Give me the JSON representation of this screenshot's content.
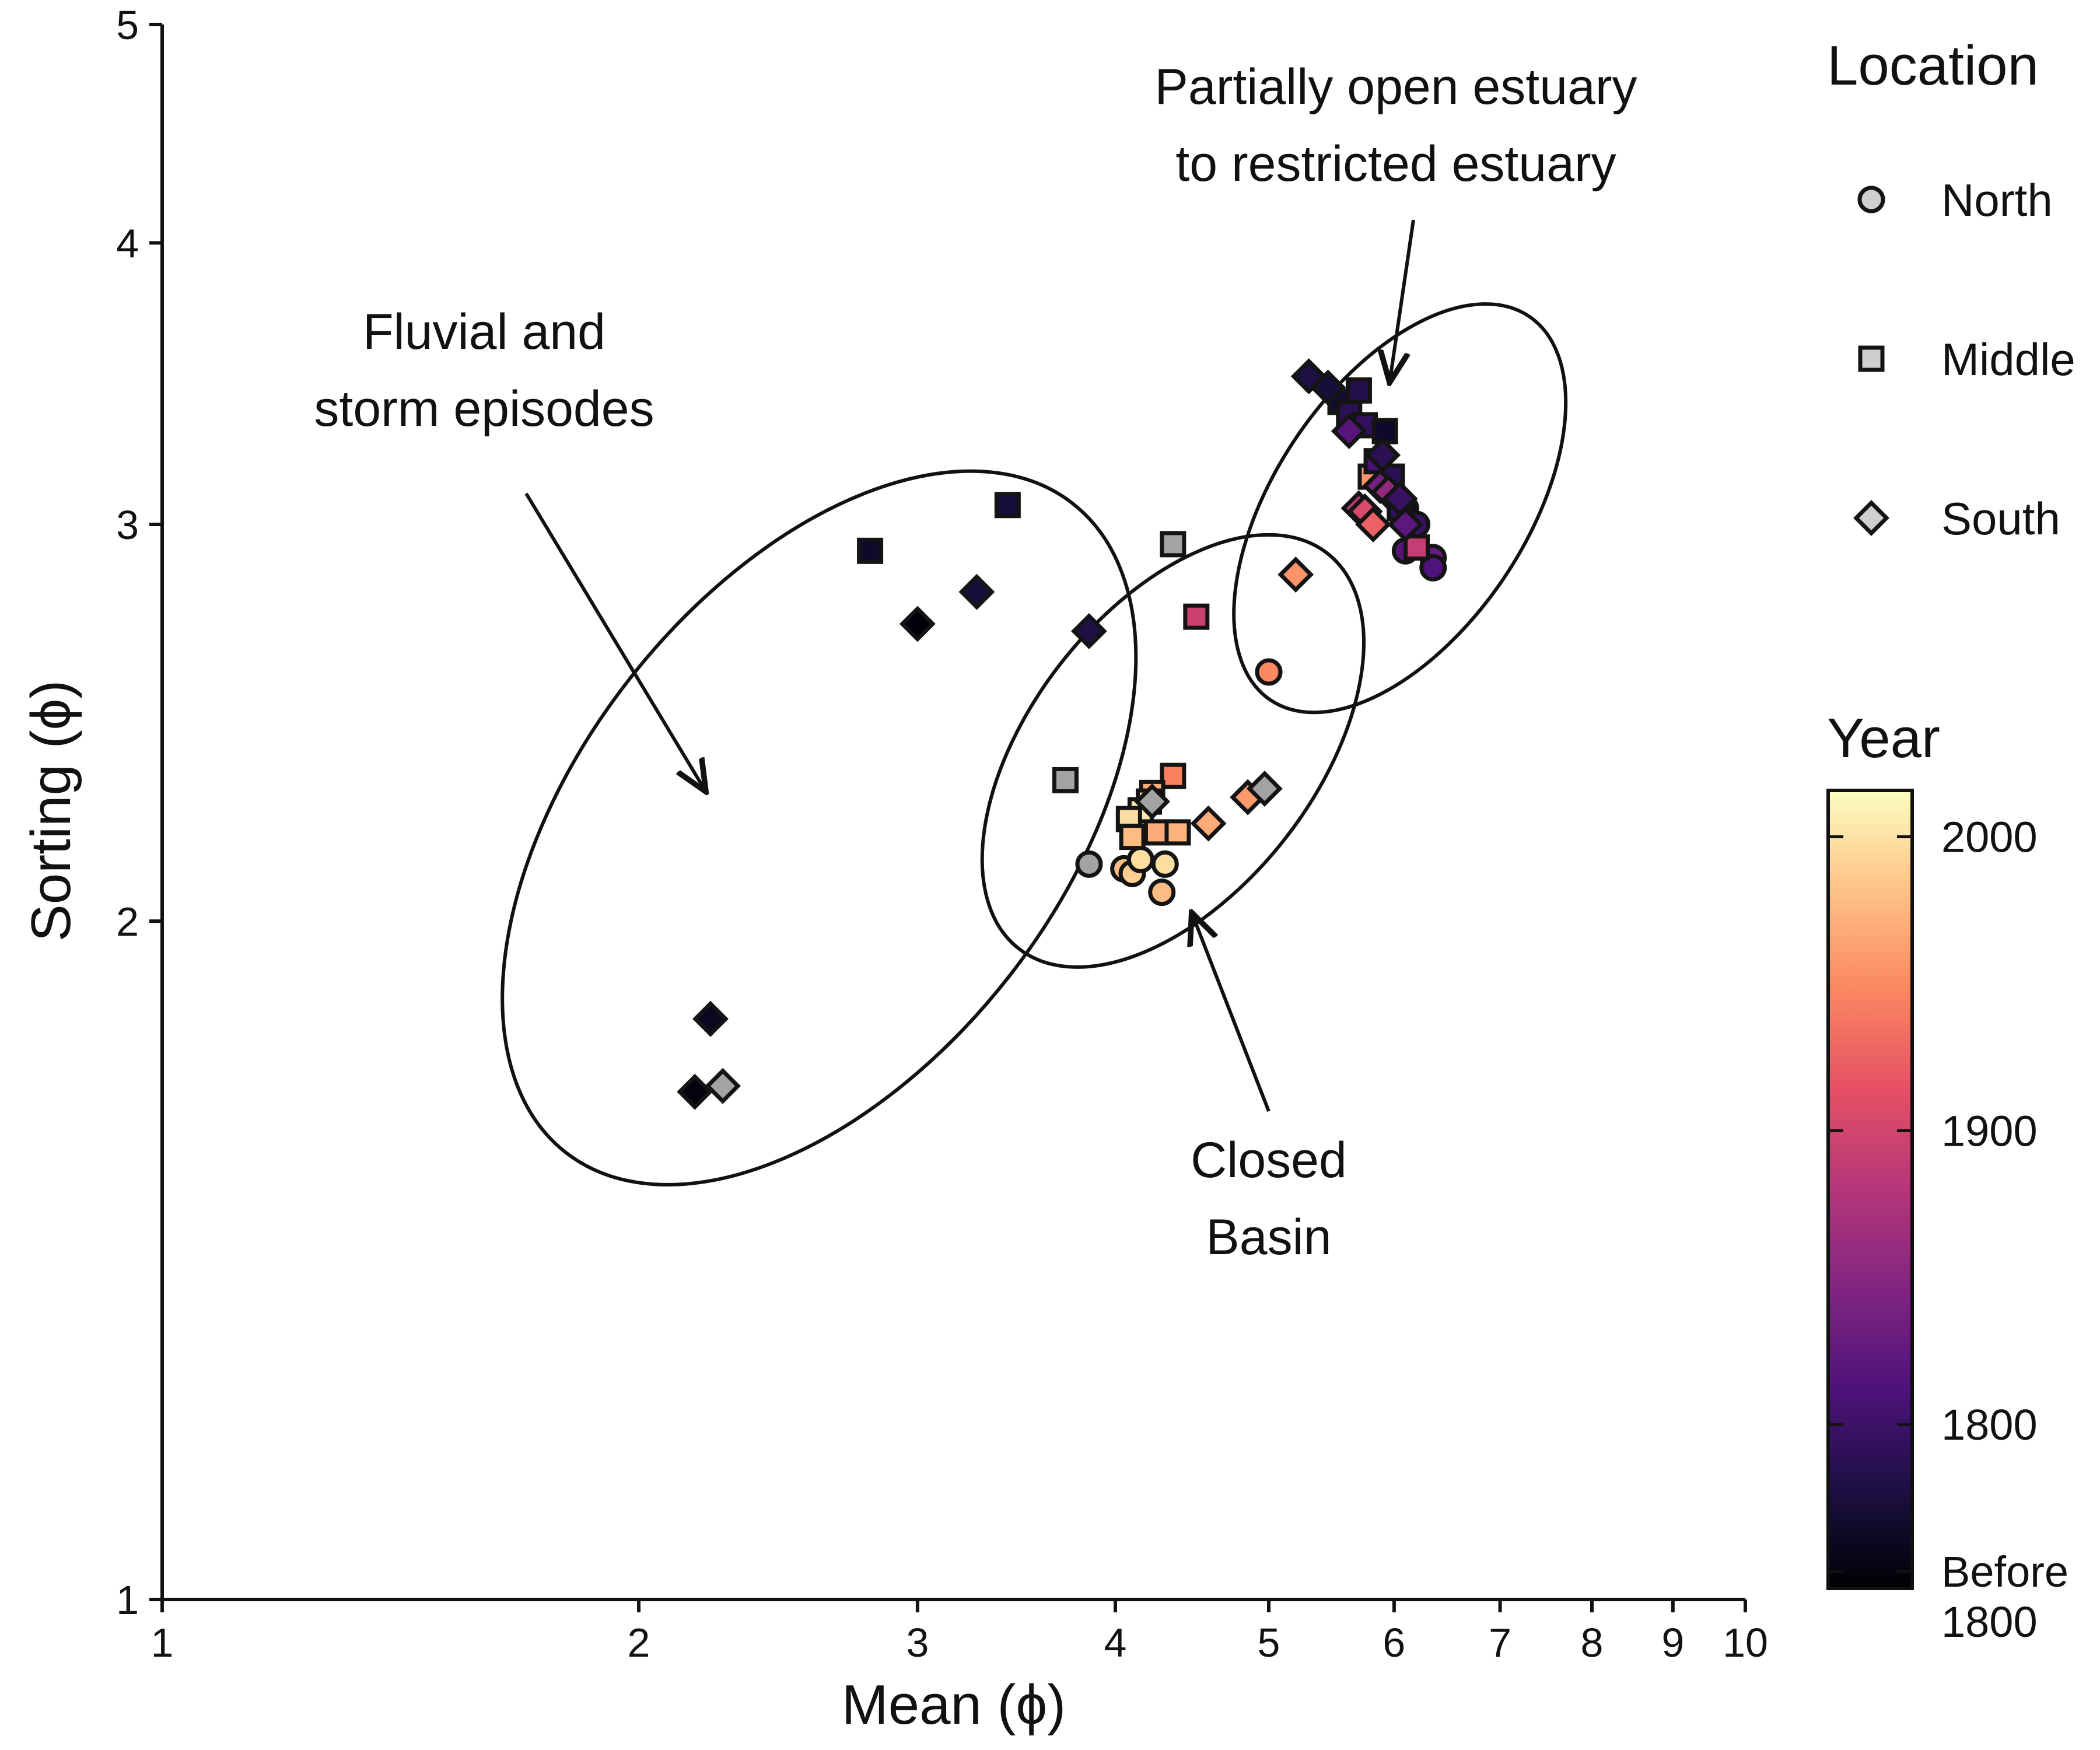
{
  "chart_data": {
    "type": "scatter",
    "xlabel": "Mean (ϕ)",
    "ylabel": "Sorting (ϕ)",
    "xscale": "log",
    "yscale": "log",
    "xlim": [
      1,
      10
    ],
    "ylim": [
      1,
      5
    ],
    "xticks": [
      "1",
      "2",
      "3",
      "4",
      "5",
      "6",
      "7",
      "8",
      "9",
      "10"
    ],
    "yticks": [
      "1",
      "2",
      "3",
      "4",
      "5"
    ],
    "grid": false,
    "legend": {
      "title": "Location",
      "placement": "right",
      "entries": [
        {
          "label": "North",
          "shape": "circle"
        },
        {
          "label": "Middle",
          "shape": "square"
        },
        {
          "label": "South",
          "shape": "diamond"
        }
      ]
    },
    "colorbar": {
      "title": "Year",
      "placement": "right",
      "range": [
        1745,
        2015
      ],
      "ticks": [
        {
          "value": 2000,
          "label": "2000"
        },
        {
          "value": 1900,
          "label": "1900"
        },
        {
          "value": 1800,
          "label": "1800"
        },
        {
          "value": 1750,
          "label": "Before\n1800"
        }
      ],
      "stops": [
        "#000004",
        "#1c1044",
        "#4f127b",
        "#812581",
        "#b5367a",
        "#e55064",
        "#fb8761",
        "#fec287",
        "#fcfdbf"
      ]
    },
    "annotations": [
      {
        "text": "Partially open estuary\nto restricted estuary",
        "ellipse": {
          "cx": 6.05,
          "cy": 3.05,
          "rx_ratio": 1.2,
          "ry_ratio": 1.4,
          "angle": 34
        }
      },
      {
        "text": "Fluvial and\nstorm episodes",
        "ellipse": {
          "cx": 2.6,
          "cy": 2.2,
          "rx_ratio": 1.42,
          "ry_ratio": 1.82,
          "angle": 38
        }
      },
      {
        "text": "Closed\nBasin",
        "ellipse": {
          "cx": 4.35,
          "cy": 2.38,
          "rx_ratio": 1.23,
          "ry_ratio": 1.44,
          "angle": 38
        }
      }
    ],
    "series": [
      {
        "name": "North",
        "shape": "circle",
        "points": [
          {
            "x": 3.85,
            "y": 2.12,
            "year": null
          },
          {
            "x": 4.05,
            "y": 2.11,
            "year": 1985
          },
          {
            "x": 4.1,
            "y": 2.1,
            "year": 1995
          },
          {
            "x": 4.15,
            "y": 2.13,
            "year": 2005
          },
          {
            "x": 4.3,
            "y": 2.12,
            "year": 2005
          },
          {
            "x": 4.28,
            "y": 2.06,
            "year": 1985
          },
          {
            "x": 5.0,
            "y": 2.58,
            "year": 1955
          },
          {
            "x": 6.1,
            "y": 3.05,
            "year": 1765
          },
          {
            "x": 6.1,
            "y": 2.92,
            "year": 1820
          },
          {
            "x": 6.2,
            "y": 3.0,
            "year": 1800
          },
          {
            "x": 6.35,
            "y": 2.9,
            "year": 1830
          },
          {
            "x": 6.35,
            "y": 2.87,
            "year": 1815
          }
        ]
      },
      {
        "name": "Middle",
        "shape": "square",
        "points": [
          {
            "x": 2.8,
            "y": 2.92,
            "year": 1765
          },
          {
            "x": 3.42,
            "y": 3.06,
            "year": 1775
          },
          {
            "x": 4.35,
            "y": 2.94,
            "year": null
          },
          {
            "x": 4.5,
            "y": 2.73,
            "year": 1900
          },
          {
            "x": 3.72,
            "y": 2.31,
            "year": null
          },
          {
            "x": 4.35,
            "y": 2.32,
            "year": 1950
          },
          {
            "x": 4.22,
            "y": 2.28,
            "year": 1975
          },
          {
            "x": 4.2,
            "y": 2.26,
            "year": 1995
          },
          {
            "x": 4.15,
            "y": 2.24,
            "year": 2010
          },
          {
            "x": 4.08,
            "y": 2.22,
            "year": 2005
          },
          {
            "x": 4.1,
            "y": 2.18,
            "year": 1985
          },
          {
            "x": 4.25,
            "y": 2.19,
            "year": 1975
          },
          {
            "x": 4.38,
            "y": 2.19,
            "year": 1980
          },
          {
            "x": 5.55,
            "y": 3.4,
            "year": 1770
          },
          {
            "x": 5.62,
            "y": 3.36,
            "year": 1790
          },
          {
            "x": 5.7,
            "y": 3.44,
            "year": 1785
          },
          {
            "x": 5.75,
            "y": 3.32,
            "year": 1795
          },
          {
            "x": 5.92,
            "y": 3.3,
            "year": 1765
          },
          {
            "x": 5.8,
            "y": 3.15,
            "year": 1960
          },
          {
            "x": 5.85,
            "y": 3.2,
            "year": 1810
          },
          {
            "x": 5.98,
            "y": 3.15,
            "year": 1790
          },
          {
            "x": 6.05,
            "y": 3.05,
            "year": 1795
          },
          {
            "x": 6.2,
            "y": 2.93,
            "year": 1895
          }
        ]
      },
      {
        "name": "South",
        "shape": "diamond",
        "points": [
          {
            "x": 3.0,
            "y": 2.71,
            "year": 1748
          },
          {
            "x": 3.27,
            "y": 2.8,
            "year": 1775
          },
          {
            "x": 3.85,
            "y": 2.69,
            "year": 1780
          },
          {
            "x": 2.22,
            "y": 1.81,
            "year": 1760
          },
          {
            "x": 2.17,
            "y": 1.68,
            "year": 1750
          },
          {
            "x": 2.26,
            "y": 1.69,
            "year": null
          },
          {
            "x": 4.22,
            "y": 2.26,
            "year": null
          },
          {
            "x": 4.58,
            "y": 2.21,
            "year": 1975
          },
          {
            "x": 4.85,
            "y": 2.27,
            "year": 1965
          },
          {
            "x": 4.97,
            "y": 2.29,
            "year": null
          },
          {
            "x": 5.2,
            "y": 2.85,
            "year": 1960
          },
          {
            "x": 5.3,
            "y": 3.49,
            "year": 1780
          },
          {
            "x": 5.45,
            "y": 3.45,
            "year": 1775
          },
          {
            "x": 5.62,
            "y": 3.3,
            "year": 1820
          },
          {
            "x": 5.7,
            "y": 3.05,
            "year": 1890
          },
          {
            "x": 5.75,
            "y": 3.04,
            "year": 1910
          },
          {
            "x": 5.82,
            "y": 3.0,
            "year": 1930
          },
          {
            "x": 5.88,
            "y": 3.12,
            "year": 1840
          },
          {
            "x": 5.9,
            "y": 3.22,
            "year": 1790
          },
          {
            "x": 5.95,
            "y": 3.1,
            "year": 1860
          },
          {
            "x": 6.05,
            "y": 3.08,
            "year": 1800
          },
          {
            "x": 6.1,
            "y": 3.0,
            "year": 1825
          }
        ]
      }
    ]
  }
}
